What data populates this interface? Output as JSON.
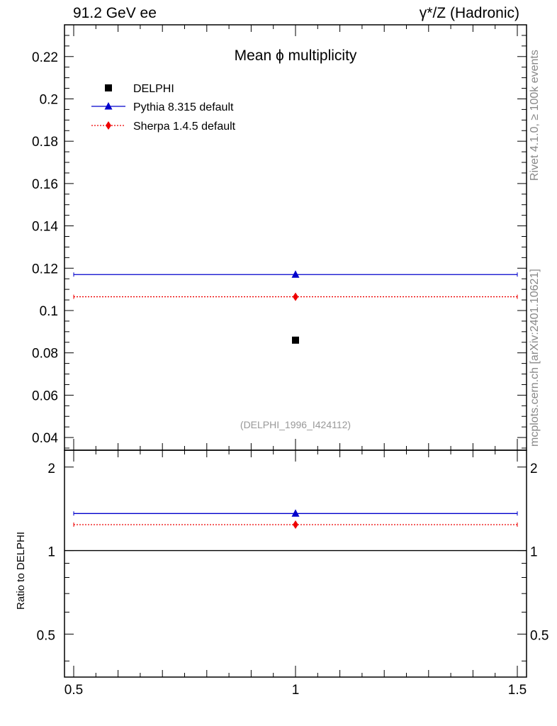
{
  "header": {
    "left": "91.2 GeV ee",
    "right": "γ*/Z (Hadronic)"
  },
  "side_text": {
    "top": "Rivet 4.1.0, ≥ 100k events",
    "bottom": "mcplots.cern.ch [arXiv:2401.10621]"
  },
  "colors": {
    "data": "#000000",
    "pythia": "#0000cc",
    "sherpa": "#ee0000",
    "watermark": "#999999"
  },
  "chart_data": [
    {
      "type": "scatter",
      "title": "Mean ϕ multiplicity",
      "watermark": "(DELPHI_1996_I424112)",
      "xlabel": "",
      "ylabel": "",
      "xlim": [
        0.5,
        1.5
      ],
      "ylim": [
        0.034,
        0.235
      ],
      "x_ticks": [
        0.5,
        1,
        1.5
      ],
      "x_tick_labels": [
        "0.5",
        "1",
        "1.5"
      ],
      "y_ticks": [
        0.04,
        0.06,
        0.08,
        0.1,
        0.12,
        0.14,
        0.16,
        0.18,
        0.2,
        0.22
      ],
      "y_tick_labels": [
        "0.04",
        "0.06",
        "0.08",
        "0.1",
        "0.12",
        "0.14",
        "0.16",
        "0.18",
        "0.2",
        "0.22"
      ],
      "legend": {
        "position": "top-left",
        "entries": [
          "DELPHI",
          "Pythia 8.315 default",
          "Sherpa 1.4.5 default"
        ]
      },
      "series": [
        {
          "name": "DELPHI",
          "marker": "square",
          "x": [
            1
          ],
          "y": [
            0.086
          ]
        },
        {
          "name": "Pythia 8.315 default",
          "marker": "triangle",
          "line": "solid",
          "x": [
            1
          ],
          "y": [
            0.117
          ],
          "x_range": [
            0.5,
            1.5
          ]
        },
        {
          "name": "Sherpa 1.4.5 default",
          "marker": "diamond",
          "line": "dotted",
          "x": [
            1
          ],
          "y": [
            0.1065
          ],
          "x_range": [
            0.5,
            1.5
          ]
        }
      ]
    },
    {
      "type": "line",
      "title": "",
      "xlabel": "",
      "ylabel": "Ratio to DELPHI",
      "xlim": [
        0.5,
        1.5
      ],
      "ylim": [
        0.35,
        2.3
      ],
      "x_ticks": [
        0.5,
        1,
        1.5
      ],
      "x_tick_labels": [
        "0.5",
        "1",
        "1.5"
      ],
      "y_ticks": [
        0.5,
        1,
        2
      ],
      "y_tick_labels": [
        "0.5",
        "1",
        "2"
      ],
      "reference_line": 1,
      "series": [
        {
          "name": "Pythia 8.315 default",
          "marker": "triangle",
          "line": "solid",
          "x": [
            1
          ],
          "y": [
            1.36
          ]
        },
        {
          "name": "Sherpa 1.4.5 default",
          "marker": "diamond",
          "line": "dotted",
          "x": [
            1
          ],
          "y": [
            1.24
          ]
        }
      ]
    }
  ]
}
